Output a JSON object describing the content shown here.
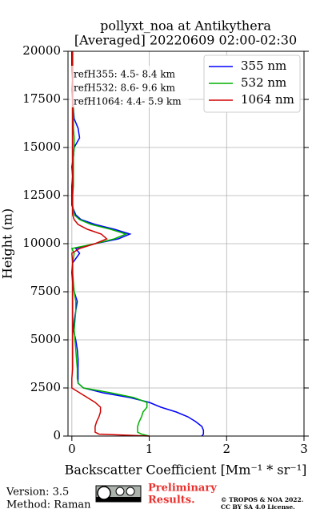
{
  "chart_data": {
    "type": "profile",
    "title": [
      "pollyxt_noa at Antikythera",
      "[Averaged] 20220609 02:00-02:30"
    ],
    "x_label": "Backscatter Coefficient [Mm⁻¹ * sr⁻¹]",
    "y_label": "Height (m)",
    "annotations": [
      "refH355:  4.5- 8.4 km",
      "refH532:  8.6- 9.6 km",
      "refH1064:  4.4- 5.9 km"
    ],
    "y": [
      0,
      100,
      200,
      300,
      500,
      750,
      1000,
      1250,
      1500,
      1750,
      2000,
      2250,
      2500,
      2750,
      3000,
      3500,
      4000,
      4500,
      5000,
      5500,
      6000,
      6500,
      7000,
      7500,
      8000,
      8500,
      9000,
      9500,
      9750,
      10000,
      10250,
      10500,
      10750,
      11000,
      11250,
      11500,
      12000,
      12500,
      13000,
      13500,
      14000,
      14500,
      15000,
      15500,
      16000,
      16500,
      17000,
      17500,
      18000,
      18500,
      19000,
      19500,
      20000
    ],
    "series": [
      {
        "name": "355 nm",
        "color": "#0000ff",
        "values": [
          1.68,
          1.7,
          1.7,
          1.7,
          1.68,
          1.6,
          1.5,
          1.35,
          1.15,
          1.0,
          0.75,
          0.4,
          0.15,
          0.08,
          0.08,
          0.08,
          0.08,
          0.07,
          0.05,
          0.02,
          0.03,
          0.05,
          0.07,
          0.03,
          0.01,
          0.0,
          0.01,
          0.1,
          0.05,
          0.3,
          0.6,
          0.75,
          0.55,
          0.3,
          0.12,
          0.05,
          0.0,
          0.0,
          0.0,
          0.01,
          0.0,
          0.02,
          0.03,
          0.1,
          0.08,
          0.03,
          0.02,
          0.01,
          0.0,
          0.01,
          0.0,
          0.0,
          0.0
        ]
      },
      {
        "name": "532 nm",
        "color": "#00b000",
        "values": [
          1.0,
          0.9,
          0.85,
          0.85,
          0.85,
          0.87,
          0.9,
          0.92,
          0.97,
          0.97,
          0.8,
          0.5,
          0.15,
          0.08,
          0.07,
          0.07,
          0.06,
          0.05,
          0.04,
          0.03,
          0.04,
          0.05,
          0.05,
          0.03,
          0.02,
          0.01,
          0.01,
          0.03,
          0.0,
          0.3,
          0.55,
          0.7,
          0.5,
          0.25,
          0.1,
          0.03,
          0.01,
          0.01,
          0.02,
          0.02,
          0.02,
          0.02,
          0.03,
          0.03,
          0.02,
          0.02,
          0.02,
          0.01,
          0.01,
          0.01,
          0.01,
          0.01,
          0.01
        ]
      },
      {
        "name": "1064 nm",
        "color": "#d00000",
        "values": [
          1.0,
          0.35,
          0.3,
          0.3,
          0.3,
          0.32,
          0.35,
          0.37,
          0.37,
          0.3,
          0.2,
          0.1,
          0.0,
          0.0,
          0.0,
          0.01,
          0.01,
          0.01,
          0.01,
          0.01,
          0.01,
          0.01,
          0.01,
          0.01,
          0.01,
          0.01,
          0.01,
          0.0,
          0.1,
          0.3,
          0.45,
          0.38,
          0.2,
          0.08,
          0.03,
          0.01,
          0.01,
          0.01,
          0.01,
          0.01,
          0.01,
          0.01,
          0.01,
          0.01,
          0.01,
          0.01,
          0.01,
          0.01,
          0.01,
          0.01,
          0.01,
          0.01,
          0.01
        ]
      }
    ],
    "xlim": [
      -0.05,
      3
    ],
    "xticks": [
      0,
      1,
      2,
      3
    ],
    "ylim": [
      0,
      20000
    ],
    "yticks": [
      0,
      2500,
      5000,
      7500,
      10000,
      12500,
      15000,
      17500,
      20000
    ],
    "grid": true,
    "legend": "upper right",
    "footer": {
      "version": "Version: 3.5",
      "method": "Method: Raman",
      "preliminary": [
        "Preliminary",
        "Results."
      ],
      "copyright": [
        "© TROPOS & NOA 2022.",
        "CC BY SA 4.0 License."
      ]
    }
  }
}
